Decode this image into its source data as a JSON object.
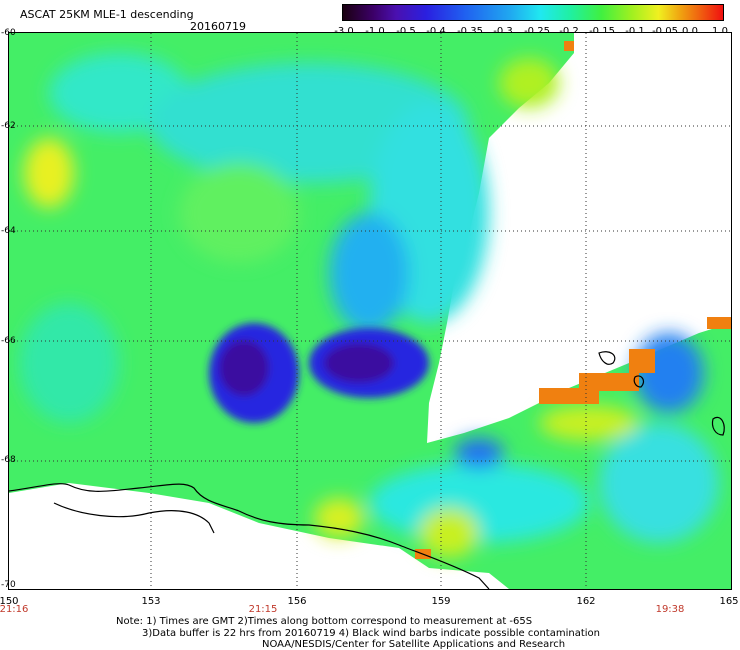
{
  "header": {
    "title": "ASCAT 25KM MLE-1 descending",
    "date": "20160719"
  },
  "colorbar": {
    "ticks": [
      "-3.0",
      "-1.0",
      "-0.5",
      "-0.4",
      "-0.35",
      "-0.3",
      "-0.25",
      "-0.2",
      "-0.15",
      "-0.1",
      "-0.05",
      "0.0",
      "1.0"
    ]
  },
  "map": {
    "lat_labels": [
      "-60",
      "-62",
      "-64",
      "-66",
      "-68",
      "-70"
    ],
    "lon_labels": [
      "150",
      "153",
      "156",
      "159",
      "162",
      "165"
    ],
    "time_labels": [
      "21:16",
      "21:15",
      "19:38"
    ]
  },
  "footer": {
    "note_line1": "Note: 1) Times are GMT 2)Times along bottom correspond to measurement at -65S",
    "note_line2": "3)Data buffer is 22 hrs from 20160719 4) Black wind barbs indicate possible contamination",
    "credit": "NOAA/NESDIS/Center for Satellite Applications and Research"
  }
}
